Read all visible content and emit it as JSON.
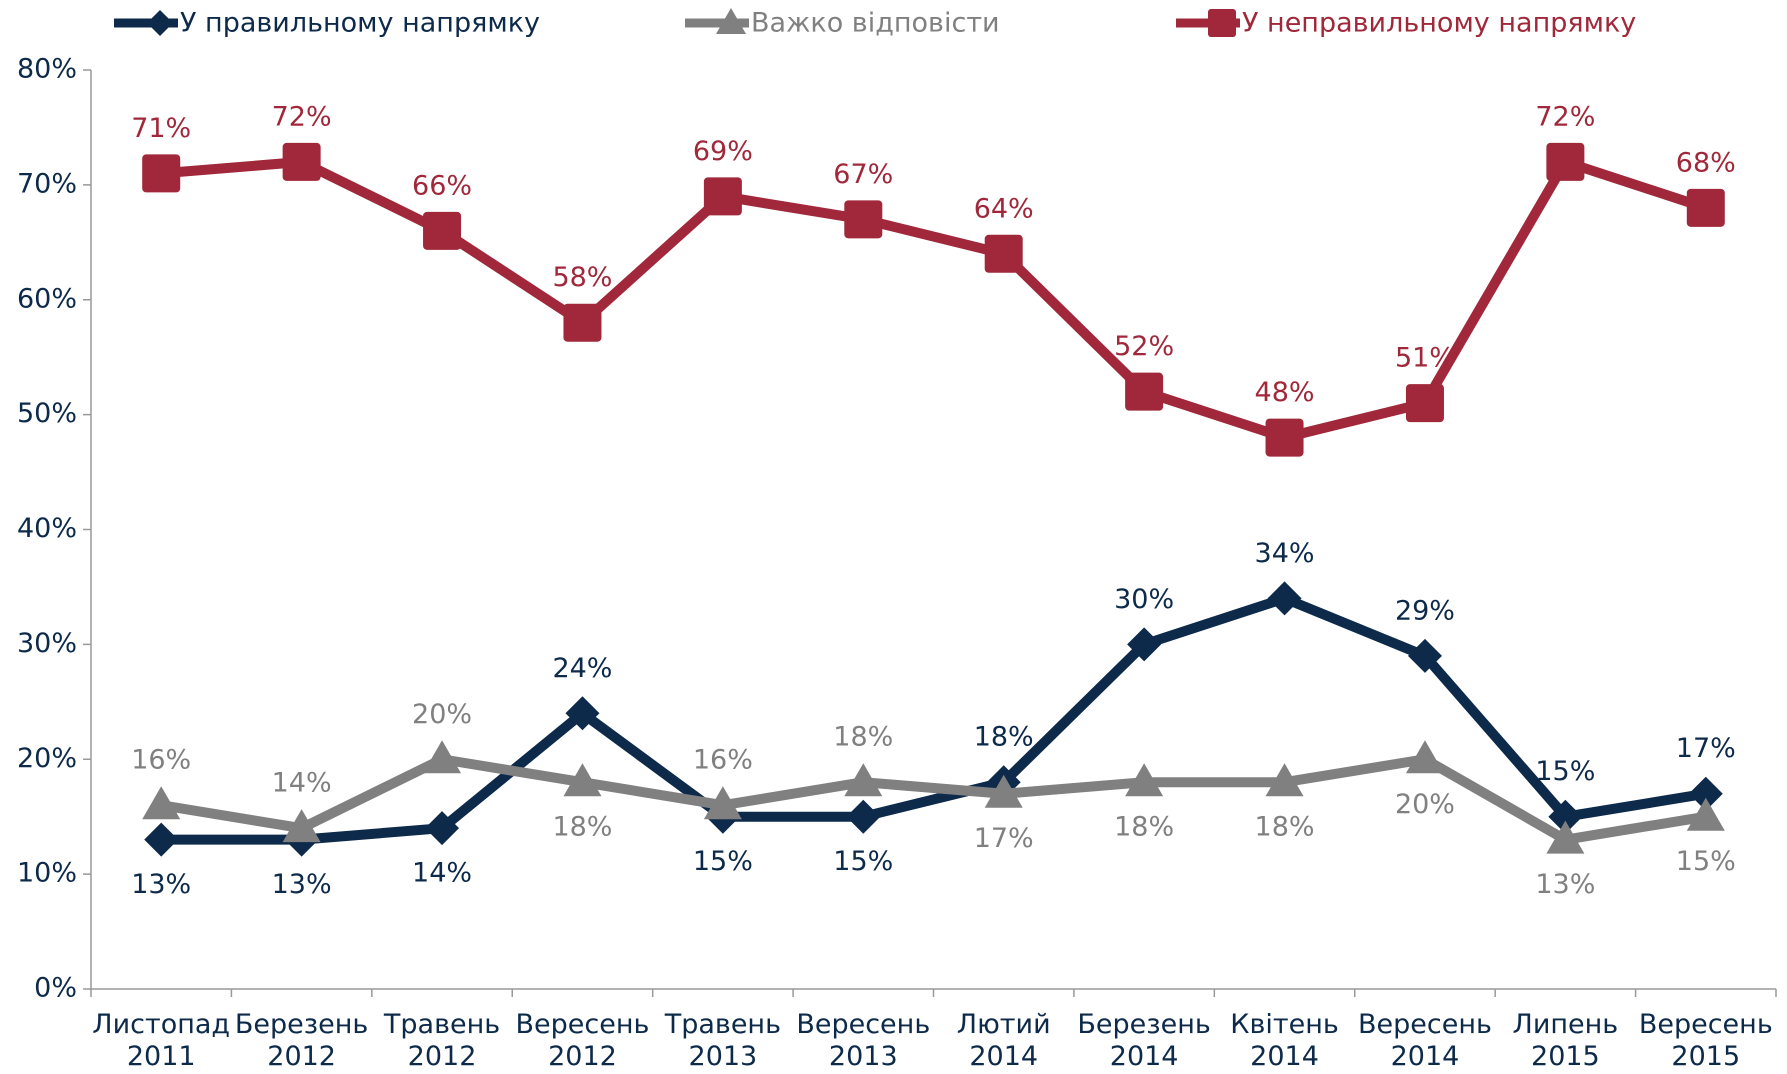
{
  "chart_data": {
    "type": "line",
    "categories": [
      "Листопад 2011",
      "Березень 2012",
      "Травень 2012",
      "Вересень 2012",
      "Травень 2013",
      "Вересень 2013",
      "Лютий 2014",
      "Березень 2014",
      "Квітень 2014",
      "Вересень 2014",
      "Липень 2015",
      "Вересень 2015"
    ],
    "series": [
      {
        "name": "У правильному напрямку",
        "color": "#0d2a4a",
        "marker": "diamond",
        "values": [
          13,
          13,
          14,
          24,
          15,
          15,
          18,
          30,
          34,
          29,
          15,
          17
        ],
        "value_labels": [
          "13%",
          "13%",
          "14%",
          "24%",
          "15%",
          "15%",
          "18%",
          "30%",
          "34%",
          "29%",
          "15%",
          "17%"
        ]
      },
      {
        "name": "Важко відповісти",
        "color": "#808080",
        "marker": "triangle",
        "values": [
          16,
          14,
          20,
          18,
          16,
          18,
          17,
          18,
          18,
          20,
          13,
          15
        ],
        "value_labels": [
          "16%",
          "14%",
          "20%",
          "18%",
          "16%",
          "18%",
          "17%",
          "18%",
          "18%",
          "20%",
          "13%",
          "15%"
        ]
      },
      {
        "name": "У неправильному напрямку",
        "color": "#a0283a",
        "marker": "square",
        "values": [
          71,
          72,
          66,
          58,
          69,
          67,
          64,
          52,
          48,
          51,
          72,
          68
        ],
        "value_labels": [
          "71%",
          "72%",
          "66%",
          "58%",
          "69%",
          "67%",
          "64%",
          "52%",
          "48%",
          "51%",
          "72%",
          "68%"
        ]
      }
    ],
    "ylim": [
      0,
      80
    ],
    "yticks": [
      {
        "value": 0,
        "label": "0%"
      },
      {
        "value": 10,
        "label": "10%"
      },
      {
        "value": 20,
        "label": "20%"
      },
      {
        "value": 30,
        "label": "30%"
      },
      {
        "value": 40,
        "label": "40%"
      },
      {
        "value": 50,
        "label": "50%"
      },
      {
        "value": 60,
        "label": "60%"
      },
      {
        "value": 70,
        "label": "70%"
      },
      {
        "value": 80,
        "label": "80%"
      }
    ],
    "grid": false
  }
}
